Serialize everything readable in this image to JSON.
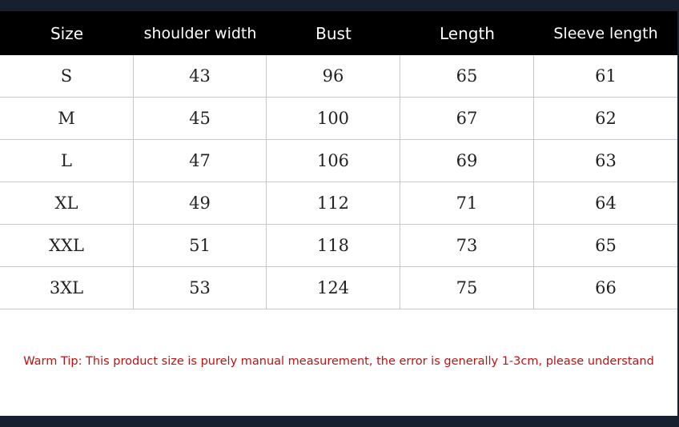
{
  "table": {
    "header": [
      "Size",
      "shoulder width",
      "Bust",
      "Length",
      "Sleeve length"
    ],
    "rows": [
      [
        "S",
        43,
        96,
        65,
        61
      ],
      [
        "M",
        45,
        100,
        67,
        62
      ],
      [
        "L",
        47,
        106,
        69,
        63
      ],
      [
        "XL",
        49,
        112,
        71,
        64
      ],
      [
        "XXL",
        51,
        118,
        73,
        65
      ],
      [
        "3XL",
        53,
        124,
        75,
        66
      ]
    ]
  },
  "note": "Warm Tip: This product size is purely manual measurement, the error is generally 1-3cm, please understand"
}
